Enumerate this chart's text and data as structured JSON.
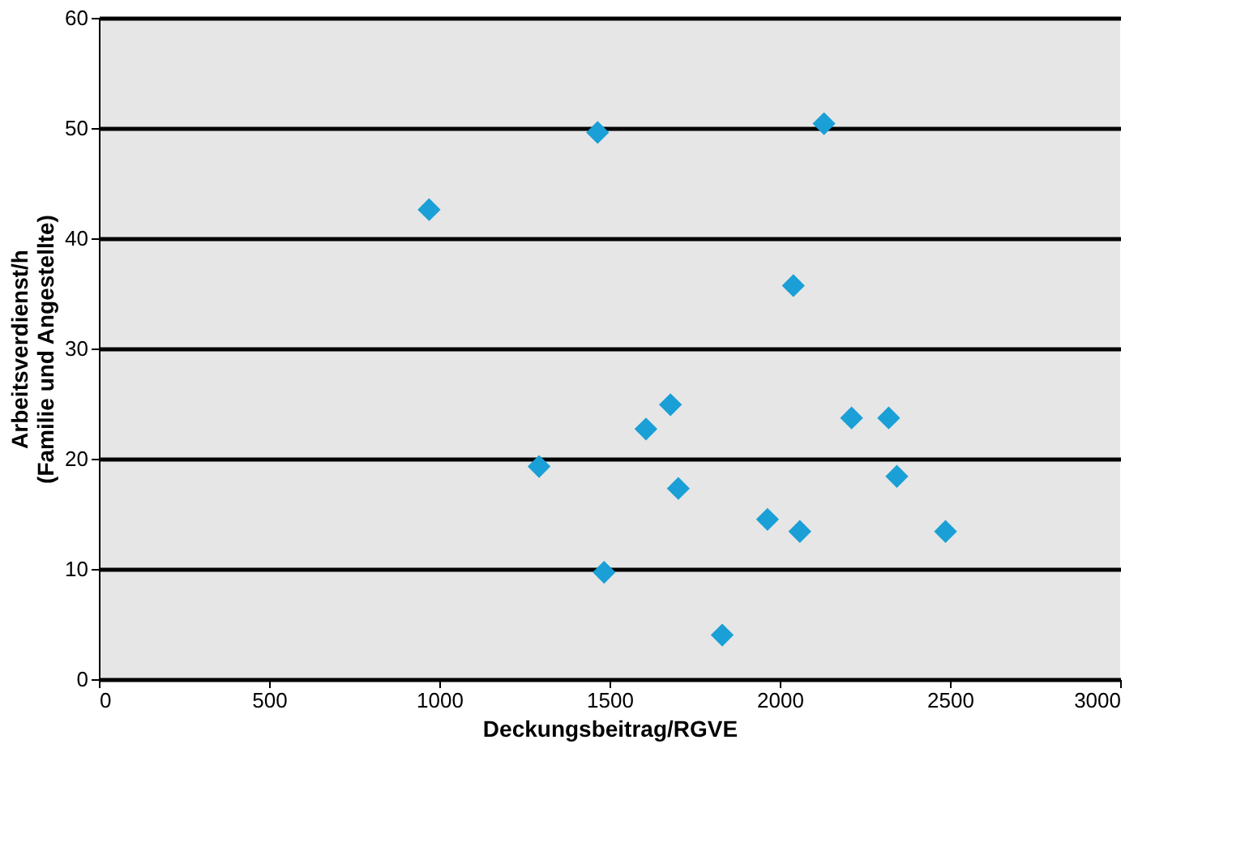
{
  "chart_data": {
    "type": "scatter",
    "xlabel": "Deckungsbeitrag/RGVE",
    "ylabel": "Arbeitsverdienst/h\n(Familie und Angestellte)",
    "x": [
      970,
      1465,
      2130,
      2040,
      1293,
      1607,
      1679,
      1702,
      1484,
      1831,
      1964,
      2059,
      2211,
      2320,
      2344,
      2487
    ],
    "series": [
      {
        "color": "#1a9fd6",
        "values": [
          42.6,
          49.6,
          50.4,
          35.7,
          19.3,
          22.7,
          24.9,
          17.3,
          9.7,
          4.0,
          14.5,
          13.4,
          23.7,
          23.7,
          18.4,
          13.4
        ]
      }
    ],
    "xlim": [
      0,
      3000
    ],
    "xticks": [
      0,
      500,
      1000,
      1500,
      2000,
      2500,
      3000
    ],
    "ylim": [
      0,
      60
    ],
    "yticks": [
      0,
      10,
      20,
      30,
      40,
      50,
      60
    ],
    "grid": "y",
    "marker": "diamond",
    "legend": false
  }
}
